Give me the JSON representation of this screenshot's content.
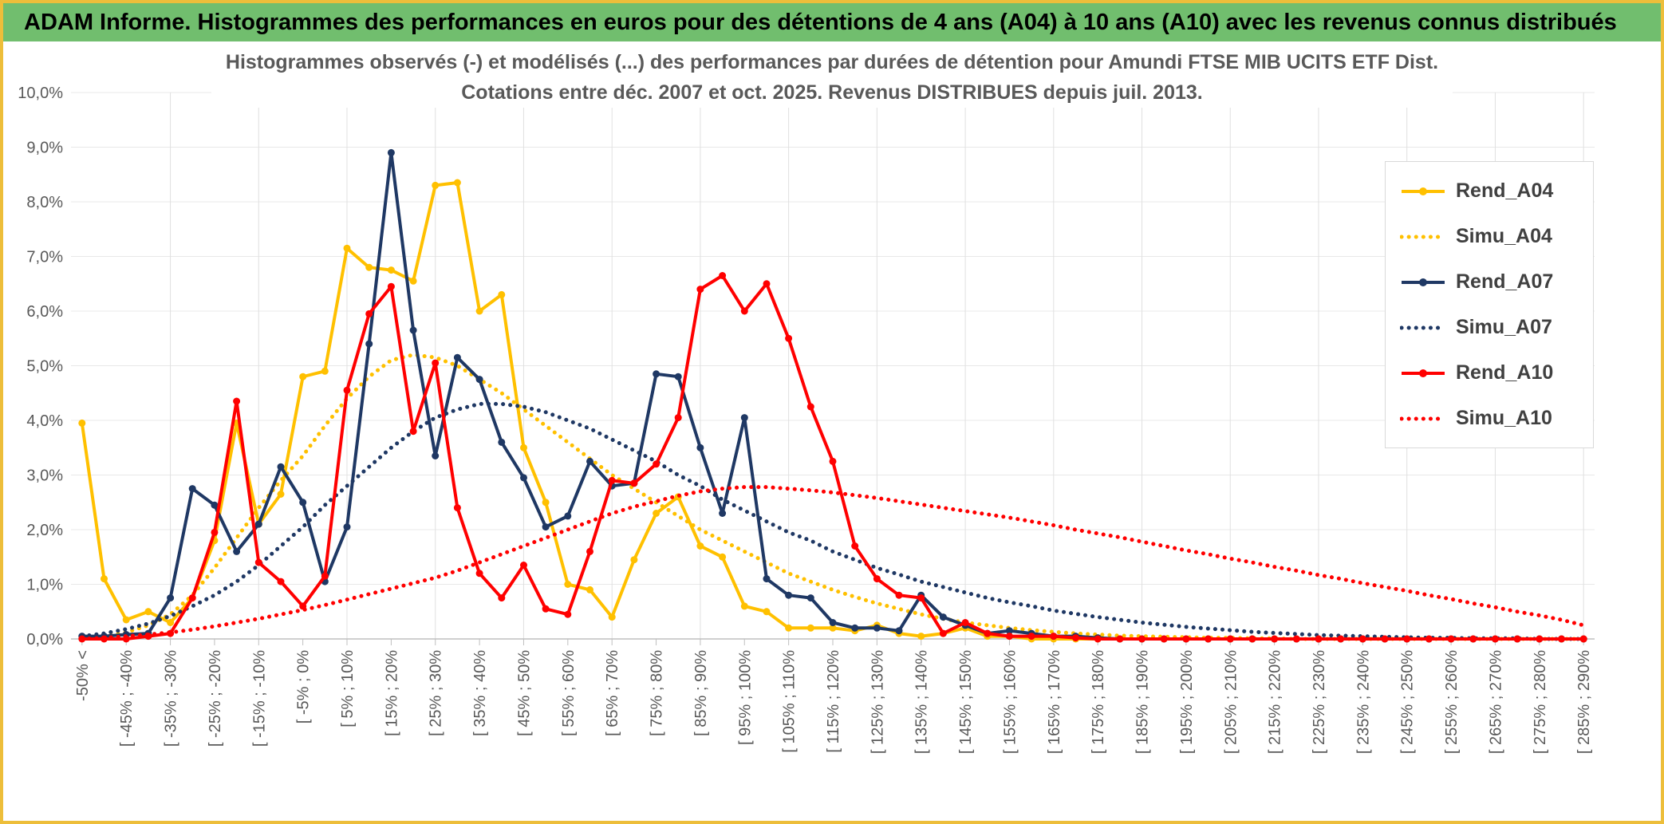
{
  "banner": {
    "title": "ADAM Informe. Histogrammes des performances en euros pour des détentions de 4 ans (A04) à 10 ans (A10) avec les revenus connus distribués"
  },
  "chart": {
    "title_line1": "Histogrammes observés (-) et modélisés (...) des performances par durées de détention pour Amundi FTSE MIB UCITS ETF Dist.",
    "title_line2": "Cotations entre déc. 2007 et oct. 2025. Revenus DISTRIBUES depuis juil. 2013."
  },
  "colors": {
    "banner_bg": "#71BE6E",
    "frame_border": "#EDBE3A",
    "gold": "#FFC000",
    "navy": "#1F3864",
    "red": "#FF0000",
    "axis_text": "#595959",
    "gridline": "#E0E0E0"
  },
  "chart_data": {
    "type": "line",
    "title": "Histogrammes observés (-) et modélisés (...) des performances par durées de détention pour Amundi FTSE MIB UCITS ETF Dist. Cotations entre déc. 2007 et oct. 2025. Revenus DISTRIBUES depuis juil. 2013.",
    "xlabel": "",
    "ylabel": "",
    "ylim": [
      0,
      10
    ],
    "ytick_labels": [
      "0,0%",
      "1,0%",
      "2,0%",
      "3,0%",
      "4,0%",
      "5,0%",
      "6,0%",
      "7,0%",
      "8,0%",
      "9,0%",
      "10,0%"
    ],
    "x_bin_width_pct": 5,
    "x_labels_note": "performance bins of 5% width; axis labels shown for every other bin",
    "x_labels": [
      "-50% <",
      "[ -45% ; -40%",
      "[ -35% ; -30%",
      "[ -25% ; -20%",
      "[ -15% ; -10%",
      "[ -5% ; 0%",
      "[ 5% ; 10%",
      "[ 15% ; 20%",
      "[ 25% ; 30%",
      "[ 35% ; 40%",
      "[ 45% ; 50%",
      "[ 55% ; 60%",
      "[ 65% ; 70%",
      "[ 75% ; 80%",
      "[ 85% ; 90%",
      "[ 95% ; 100%",
      "[ 105% ; 110%",
      "[ 115% ; 120%",
      "[ 125% ; 130%",
      "[ 135% ; 140%",
      "[ 145% ; 150%",
      "[ 155% ; 160%",
      "[ 165% ; 170%",
      "[ 175% ; 180%",
      "[ 185% ; 190%",
      "[ 195% ; 200%",
      "[ 205% ; 210%",
      "[ 215% ; 220%",
      "[ 225% ; 230%",
      "[ 235% ; 240%",
      "[ 245% ; 250%",
      "[ 255% ; 260%",
      "[ 265% ; 270%",
      "[ 275% ; 280%",
      "[ 285% ; 290%"
    ],
    "legend_position": "right",
    "series": [
      {
        "name": "Rend_A04",
        "color": "#FFC000",
        "style": "solid",
        "markers": true,
        "values": [
          3.95,
          1.1,
          0.35,
          0.5,
          0.3,
          0.75,
          1.8,
          3.95,
          2.1,
          2.65,
          4.8,
          4.9,
          7.15,
          6.8,
          6.75,
          6.55,
          8.3,
          8.35,
          6.0,
          6.3,
          3.5,
          2.5,
          1.0,
          0.9,
          0.4,
          1.45,
          2.3,
          2.6,
          1.7,
          1.5,
          0.6,
          0.5,
          0.2,
          0.2,
          0.2,
          0.15,
          0.25,
          0.1,
          0.05,
          0.1,
          0.2,
          0.05,
          0.05,
          0,
          0,
          0,
          0,
          0,
          0,
          0,
          0,
          0,
          0,
          0,
          0,
          0,
          0,
          0,
          0,
          0,
          0,
          0,
          0,
          0,
          0,
          0,
          0,
          0,
          0
        ]
      },
      {
        "name": "Simu_A04",
        "color": "#FFC000",
        "style": "dotted",
        "markers": false,
        "values": [
          0.02,
          0.05,
          0.12,
          0.25,
          0.45,
          0.8,
          1.3,
          1.85,
          2.4,
          2.9,
          3.35,
          3.9,
          4.4,
          4.8,
          5.1,
          5.2,
          5.15,
          5.0,
          4.75,
          4.5,
          4.2,
          3.9,
          3.6,
          3.3,
          3.0,
          2.75,
          2.5,
          2.25,
          2.0,
          1.8,
          1.6,
          1.4,
          1.2,
          1.05,
          0.9,
          0.77,
          0.65,
          0.55,
          0.45,
          0.37,
          0.3,
          0.25,
          0.2,
          0.16,
          0.13,
          0.1,
          0.08,
          0.06,
          0.05,
          0.04,
          0.03,
          0.02,
          0.02,
          0.01,
          0.01,
          0,
          0,
          0,
          0,
          0,
          0,
          0,
          0,
          0,
          0,
          0,
          0,
          0,
          0
        ]
      },
      {
        "name": "Rend_A07",
        "color": "#1F3864",
        "style": "solid",
        "markers": true,
        "values": [
          0.05,
          0.05,
          0.08,
          0.1,
          0.75,
          2.75,
          2.45,
          1.6,
          2.1,
          3.15,
          2.5,
          1.05,
          2.05,
          5.4,
          8.9,
          5.65,
          3.35,
          5.15,
          4.75,
          3.6,
          2.95,
          2.05,
          2.25,
          3.25,
          2.8,
          2.85,
          4.85,
          4.8,
          3.5,
          2.3,
          4.05,
          1.1,
          0.8,
          0.75,
          0.3,
          0.2,
          0.2,
          0.15,
          0.8,
          0.4,
          0.25,
          0.1,
          0.15,
          0.1,
          0.05,
          0.05,
          0.02,
          0,
          0,
          0,
          0,
          0,
          0,
          0,
          0,
          0,
          0,
          0,
          0,
          0,
          0,
          0,
          0,
          0,
          0,
          0,
          0,
          0,
          0
        ]
      },
      {
        "name": "Simu_A07",
        "color": "#1F3864",
        "style": "dotted",
        "markers": false,
        "values": [
          0.05,
          0.1,
          0.18,
          0.28,
          0.42,
          0.6,
          0.8,
          1.05,
          1.35,
          1.7,
          2.05,
          2.45,
          2.8,
          3.15,
          3.5,
          3.8,
          4.05,
          4.2,
          4.3,
          4.3,
          4.25,
          4.15,
          4.0,
          3.85,
          3.65,
          3.45,
          3.25,
          3.0,
          2.8,
          2.55,
          2.35,
          2.15,
          1.95,
          1.8,
          1.6,
          1.45,
          1.3,
          1.18,
          1.05,
          0.95,
          0.85,
          0.75,
          0.67,
          0.6,
          0.52,
          0.46,
          0.4,
          0.35,
          0.3,
          0.26,
          0.22,
          0.19,
          0.16,
          0.13,
          0.11,
          0.09,
          0.07,
          0.06,
          0.05,
          0.04,
          0.03,
          0.02,
          0.02,
          0.01,
          0.01,
          0.01,
          0,
          0,
          0
        ]
      },
      {
        "name": "Rend_A10",
        "color": "#FF0000",
        "style": "solid",
        "markers": true,
        "values": [
          0,
          0,
          0,
          0.05,
          0.1,
          0.75,
          1.95,
          4.35,
          1.4,
          1.05,
          0.6,
          1.15,
          4.55,
          5.95,
          6.45,
          3.8,
          5.05,
          2.4,
          1.2,
          0.75,
          1.35,
          0.55,
          0.45,
          1.6,
          2.9,
          2.85,
          3.2,
          4.05,
          6.4,
          6.65,
          6.0,
          6.5,
          5.5,
          4.25,
          3.25,
          1.7,
          1.1,
          0.8,
          0.75,
          0.1,
          0.3,
          0.1,
          0.05,
          0.05,
          0.05,
          0.02,
          0,
          0,
          0,
          0,
          0,
          0,
          0,
          0,
          0,
          0,
          0,
          0,
          0,
          0,
          0,
          0,
          0,
          0,
          0,
          0,
          0,
          0,
          0
        ]
      },
      {
        "name": "Simu_A10",
        "color": "#FF0000",
        "style": "dotted",
        "markers": false,
        "values": [
          0,
          0.02,
          0.05,
          0.08,
          0.12,
          0.17,
          0.23,
          0.3,
          0.37,
          0.45,
          0.53,
          0.62,
          0.72,
          0.82,
          0.92,
          1.02,
          1.12,
          1.25,
          1.4,
          1.55,
          1.7,
          1.85,
          2.0,
          2.15,
          2.3,
          2.42,
          2.52,
          2.62,
          2.7,
          2.75,
          2.78,
          2.78,
          2.75,
          2.72,
          2.68,
          2.63,
          2.58,
          2.52,
          2.46,
          2.4,
          2.34,
          2.28,
          2.22,
          2.15,
          2.08,
          2.0,
          1.93,
          1.86,
          1.78,
          1.7,
          1.62,
          1.55,
          1.47,
          1.4,
          1.32,
          1.25,
          1.17,
          1.1,
          1.02,
          0.95,
          0.88,
          0.8,
          0.73,
          0.65,
          0.58,
          0.5,
          0.43,
          0.35,
          0.25
        ]
      }
    ]
  }
}
